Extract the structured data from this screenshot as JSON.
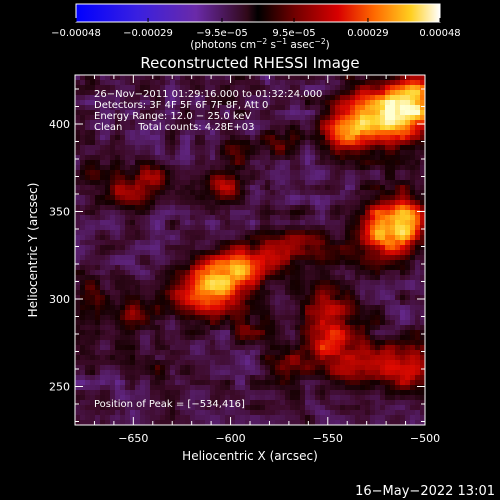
{
  "chart_data": {
    "type": "heatmap",
    "title": "Reconstructed RHESSI Image",
    "xlabel": "Heliocentric X (arcsec)",
    "ylabel": "Heliocentric Y (arcsec)",
    "xlim": [
      -680,
      -500
    ],
    "ylim": [
      228,
      428
    ],
    "x_ticks": [
      -650,
      -600,
      -550,
      -500
    ],
    "x_tick_labels": [
      "−650",
      "−600",
      "−550",
      "−500"
    ],
    "y_ticks": [
      250,
      300,
      350,
      400
    ],
    "y_tick_labels": [
      "250",
      "300",
      "350",
      "400"
    ],
    "colorbar": {
      "ticks": [
        -0.00048,
        -0.00029,
        -9.5e-05,
        9.5e-05,
        0.00029,
        0.00048
      ],
      "tick_labels": [
        "−0.00048",
        "−0.00029",
        "−9.5e−05",
        "9.5e−05",
        "0.00029",
        "0.00048"
      ],
      "range": [
        -0.00048,
        0.00048
      ],
      "label_parts": {
        "a": "(photons cm",
        "b": "−2",
        "c": " s",
        "d": "−1",
        "e": " asec",
        "f": "−2",
        "g": ")"
      }
    },
    "annotations": [
      "26−Nov−2011 01:29:16.000 to 01:32:24.000",
      "Detectors: 3F 4F 5F 6F 7F 8F, Att 0",
      "Energy Range: 12.0 − 25.0 keV",
      "Clean     Total counts: 4.28E+03"
    ],
    "peak_label": "Position of Peak = [−534,416]",
    "peak": {
      "x": -534,
      "y": 416
    },
    "sources": [
      {
        "x": -521,
        "y": 405,
        "sx": 15,
        "sy": 12,
        "a": 0.9
      },
      {
        "x": -505,
        "y": 415,
        "sx": 8,
        "sy": 12,
        "a": 0.6
      },
      {
        "x": -540,
        "y": 395,
        "sx": 9,
        "sy": 9,
        "a": 0.5
      },
      {
        "x": -612,
        "y": 305,
        "sx": 12,
        "sy": 10,
        "a": 0.85
      },
      {
        "x": -595,
        "y": 318,
        "sx": 12,
        "sy": 8,
        "a": 0.6
      },
      {
        "x": -568,
        "y": 330,
        "sx": 14,
        "sy": 8,
        "a": 0.45
      },
      {
        "x": -550,
        "y": 283,
        "sx": 10,
        "sy": 18,
        "a": 0.55
      },
      {
        "x": -525,
        "y": 263,
        "sx": 12,
        "sy": 10,
        "a": 0.5
      },
      {
        "x": -520,
        "y": 340,
        "sx": 10,
        "sy": 12,
        "a": 0.85
      },
      {
        "x": -508,
        "y": 345,
        "sx": 6,
        "sy": 10,
        "a": 0.5
      },
      {
        "x": -652,
        "y": 360,
        "sx": 8,
        "sy": 6,
        "a": 0.5
      },
      {
        "x": -640,
        "y": 370,
        "sx": 8,
        "sy": 5,
        "a": 0.35
      },
      {
        "x": -604,
        "y": 364,
        "sx": 8,
        "sy": 7,
        "a": 0.45
      },
      {
        "x": -598,
        "y": 385,
        "sx": 7,
        "sy": 6,
        "a": 0.3
      },
      {
        "x": -575,
        "y": 389,
        "sx": 6,
        "sy": 6,
        "a": 0.3
      },
      {
        "x": -650,
        "y": 292,
        "sx": 7,
        "sy": 6,
        "a": 0.3
      },
      {
        "x": -640,
        "y": 262,
        "sx": 6,
        "sy": 5,
        "a": 0.2
      },
      {
        "x": -590,
        "y": 282,
        "sx": 6,
        "sy": 6,
        "a": 0.25
      },
      {
        "x": -570,
        "y": 262,
        "sx": 8,
        "sy": 6,
        "a": 0.3
      },
      {
        "x": -505,
        "y": 260,
        "sx": 8,
        "sy": 10,
        "a": 0.4
      },
      {
        "x": -672,
        "y": 300,
        "sx": 6,
        "sy": 10,
        "a": 0.3
      },
      {
        "x": -670,
        "y": 375,
        "sx": 6,
        "sy": 8,
        "a": 0.25
      }
    ],
    "background_level": -0.05,
    "noise_amplitude": 0.13,
    "noise_period_arcsec": 7
  },
  "footer": {
    "timestamp": "16−May−2022 13:01"
  }
}
